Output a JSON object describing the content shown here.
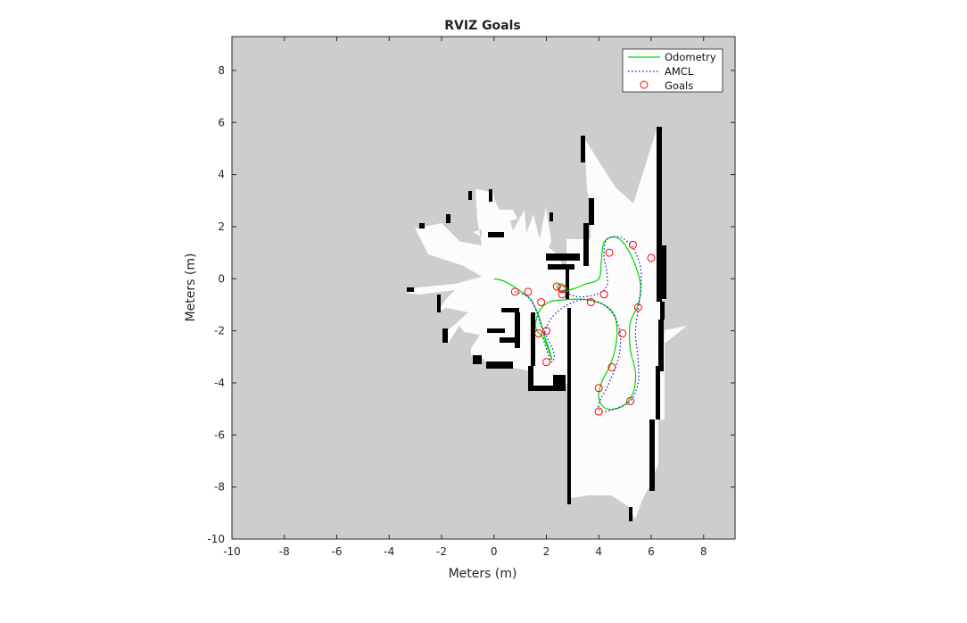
{
  "chart_data": {
    "type": "line",
    "title": "RVIZ Goals",
    "xlabel": "Meters (m)",
    "ylabel": "Meters (m)",
    "xlim": [
      -10,
      9.2
    ],
    "ylim": [
      -10,
      9.3
    ],
    "xticks": [
      -10,
      -8,
      -6,
      -4,
      -2,
      0,
      2,
      4,
      6,
      8
    ],
    "yticks": [
      -10,
      -8,
      -6,
      -4,
      -2,
      0,
      2,
      4,
      6,
      8
    ],
    "grid": false,
    "legend_position": "top-right",
    "background_map": "occupancy grid (gray unknown, white free, black occupied)",
    "colors": {
      "unknown": "#cdcdcd",
      "free": "#fcfcfc",
      "occupied": "#000000",
      "odometry": "#00d800",
      "amcl": "#1010c0",
      "goals": "#ff0000"
    },
    "series": [
      {
        "name": "Odometry",
        "style": "solid green line",
        "points": [
          [
            0,
            0
          ],
          [
            0.4,
            -0.1
          ],
          [
            0.9,
            -0.4
          ],
          [
            1.4,
            -0.8
          ],
          [
            1.7,
            -1.4
          ],
          [
            1.9,
            -2.1
          ],
          [
            2.1,
            -2.7
          ],
          [
            2.2,
            -3.1
          ],
          [
            2.1,
            -2.8
          ],
          [
            1.9,
            -2.3
          ],
          [
            1.6,
            -1.9
          ],
          [
            1.7,
            -1.3
          ],
          [
            2.1,
            -0.9
          ],
          [
            2.8,
            -0.8
          ],
          [
            3.5,
            -0.8
          ],
          [
            4.2,
            -1.0
          ],
          [
            4.6,
            -1.4
          ],
          [
            4.7,
            -2.1
          ],
          [
            4.6,
            -2.8
          ],
          [
            4.4,
            -3.4
          ],
          [
            4.1,
            -4.0
          ],
          [
            4.0,
            -4.6
          ],
          [
            4.3,
            -5.0
          ],
          [
            4.9,
            -4.9
          ],
          [
            5.3,
            -4.4
          ],
          [
            5.4,
            -3.6
          ],
          [
            5.2,
            -2.7
          ],
          [
            5.2,
            -1.7
          ],
          [
            5.5,
            -1.0
          ],
          [
            5.6,
            -0.3
          ],
          [
            5.4,
            0.5
          ],
          [
            5.0,
            1.3
          ],
          [
            4.6,
            1.6
          ],
          [
            4.2,
            1.4
          ],
          [
            4.1,
            0.7
          ],
          [
            4.0,
            0.0
          ],
          [
            3.5,
            -0.2
          ],
          [
            3.0,
            -0.4
          ],
          [
            2.6,
            -0.5
          ],
          [
            2.4,
            -0.3
          ],
          [
            2.6,
            -0.2
          ],
          [
            2.8,
            -0.4
          ]
        ]
      },
      {
        "name": "AMCL",
        "style": "dotted blue line",
        "points": [
          [
            0.8,
            -0.5
          ],
          [
            1.3,
            -0.7
          ],
          [
            1.6,
            -1.2
          ],
          [
            1.8,
            -1.8
          ],
          [
            2.1,
            -2.4
          ],
          [
            2.3,
            -2.9
          ],
          [
            2.2,
            -3.2
          ],
          [
            2.0,
            -2.7
          ],
          [
            1.9,
            -2.2
          ],
          [
            2.2,
            -1.5
          ],
          [
            2.8,
            -1.0
          ],
          [
            3.4,
            -0.8
          ],
          [
            4.0,
            -0.9
          ],
          [
            4.5,
            -1.3
          ],
          [
            4.8,
            -2.0
          ],
          [
            4.8,
            -2.8
          ],
          [
            4.6,
            -3.5
          ],
          [
            4.3,
            -4.2
          ],
          [
            4.0,
            -4.8
          ],
          [
            4.1,
            -5.1
          ],
          [
            4.6,
            -5.0
          ],
          [
            5.2,
            -4.7
          ],
          [
            5.5,
            -4.0
          ],
          [
            5.5,
            -3.1
          ],
          [
            5.4,
            -2.1
          ],
          [
            5.5,
            -1.2
          ],
          [
            5.6,
            -0.4
          ],
          [
            5.6,
            0.4
          ],
          [
            5.3,
            1.2
          ],
          [
            4.8,
            1.6
          ],
          [
            4.3,
            1.5
          ],
          [
            4.2,
            0.9
          ],
          [
            4.3,
            0.3
          ],
          [
            4.3,
            -0.3
          ],
          [
            3.9,
            -0.6
          ],
          [
            3.3,
            -0.7
          ],
          [
            2.9,
            -0.6
          ],
          [
            2.6,
            -0.4
          ]
        ]
      },
      {
        "name": "Goals",
        "style": "red circle markers",
        "points": [
          [
            0.8,
            -0.5
          ],
          [
            1.3,
            -0.5
          ],
          [
            1.8,
            -0.9
          ],
          [
            2.4,
            -0.3
          ],
          [
            2.6,
            -0.4
          ],
          [
            2.6,
            -0.6
          ],
          [
            3.7,
            -0.9
          ],
          [
            4.2,
            -0.6
          ],
          [
            4.4,
            1.0
          ],
          [
            5.3,
            1.3
          ],
          [
            6.0,
            0.8
          ],
          [
            5.5,
            -1.1
          ],
          [
            4.9,
            -2.1
          ],
          [
            1.7,
            -2.1
          ],
          [
            2.0,
            -2.0
          ],
          [
            2.0,
            -3.2
          ],
          [
            4.5,
            -3.4
          ],
          [
            4.0,
            -4.2
          ],
          [
            5.2,
            -4.7
          ],
          [
            4.0,
            -5.1
          ]
        ]
      }
    ]
  }
}
